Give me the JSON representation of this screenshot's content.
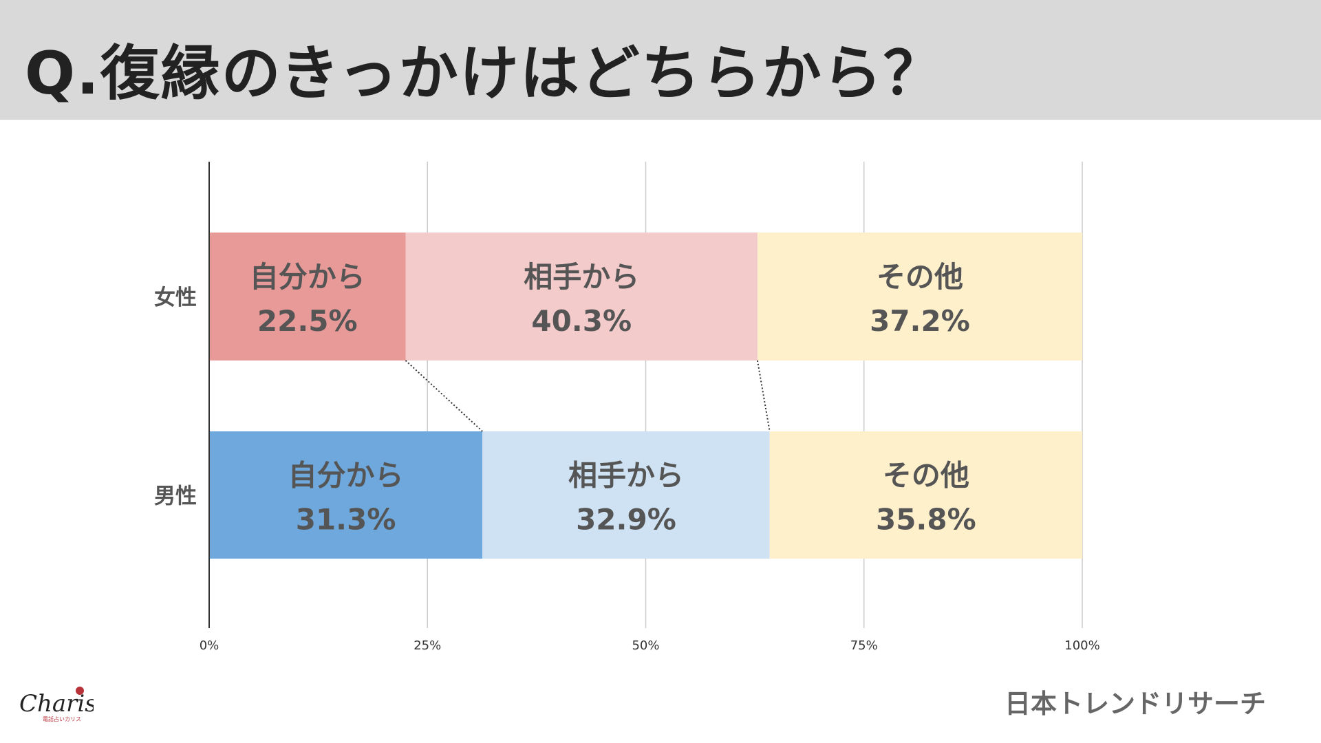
{
  "title": "Q.復縁のきっかけはどちらから？",
  "source": "日本トレンドリサーチ",
  "logo": {
    "name": "Charis",
    "sub": "電話占いカリス"
  },
  "chart_data": {
    "type": "bar",
    "orientation": "horizontal-stacked-100",
    "categories": [
      "女性",
      "男性"
    ],
    "series": [
      {
        "name": "自分から",
        "values": [
          22.5,
          31.3
        ],
        "colors": [
          "#e89a98",
          "#6fa8dc"
        ]
      },
      {
        "name": "相手から",
        "values": [
          40.3,
          32.9
        ],
        "colors": [
          "#f4cbcb",
          "#cfe2f3"
        ]
      },
      {
        "name": "その他",
        "values": [
          37.2,
          35.8
        ],
        "colors": [
          "#fff0cc",
          "#fff0cc"
        ]
      }
    ],
    "xlim": [
      0,
      100
    ],
    "xticks": [
      "0%",
      "25%",
      "50%",
      "75%",
      "100%"
    ],
    "grid": true
  }
}
